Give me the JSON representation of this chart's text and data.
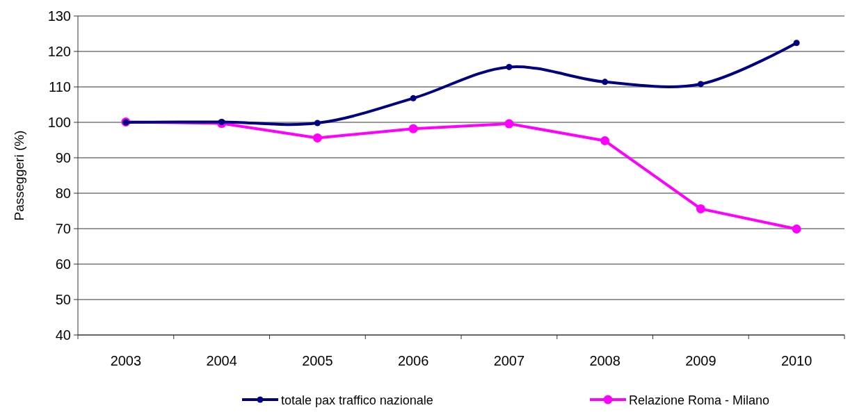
{
  "chart_data": {
    "type": "line",
    "ylabel": "Passeggeri (%)",
    "categories": [
      "2003",
      "2004",
      "2005",
      "2006",
      "2007",
      "2008",
      "2009",
      "2010"
    ],
    "series": [
      {
        "name": "totale pax traffico nazionale",
        "color": "#000080",
        "values": [
          100,
          100.1,
          99.8,
          106.8,
          115.6,
          111.4,
          110.8,
          122.4
        ]
      },
      {
        "name": "Relazione Roma - Milano",
        "color": "#ff00ff",
        "values": [
          100.1,
          99.7,
          95.6,
          98.2,
          99.6,
          94.8,
          75.6,
          69.9
        ]
      }
    ],
    "ylim": [
      40,
      130
    ],
    "yticks": [
      40,
      50,
      60,
      70,
      80,
      90,
      100,
      110,
      120,
      130
    ],
    "grid": "y",
    "legend": "bottom",
    "marker": "circle",
    "line_style": "solid"
  }
}
